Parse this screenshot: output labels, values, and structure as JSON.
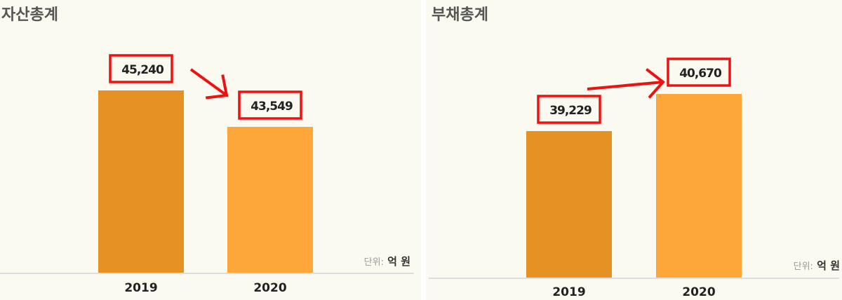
{
  "chart_data": [
    {
      "type": "bar",
      "title": "자산총계",
      "categories": [
        "2019",
        "2020"
      ],
      "values": [
        45240,
        43549
      ],
      "value_labels": [
        "45,240",
        "43,549"
      ],
      "unit_label": "단위:",
      "unit_value": "억 원",
      "ylim": [
        36785,
        47484
      ],
      "colors": [
        "#e59123",
        "#fda63a"
      ],
      "highlight_color": "#ee1111",
      "trend": "down",
      "grid": false
    },
    {
      "type": "bar",
      "title": "부채총계",
      "categories": [
        "2019",
        "2020"
      ],
      "values": [
        39229,
        40670
      ],
      "value_labels": [
        "39,229",
        "40,670"
      ],
      "unit_label": "단위:",
      "unit_value": "억 원",
      "ylim": [
        33547,
        42682
      ],
      "colors": [
        "#e59123",
        "#fda63a"
      ],
      "highlight_color": "#ee1111",
      "trend": "up",
      "grid": false
    }
  ]
}
